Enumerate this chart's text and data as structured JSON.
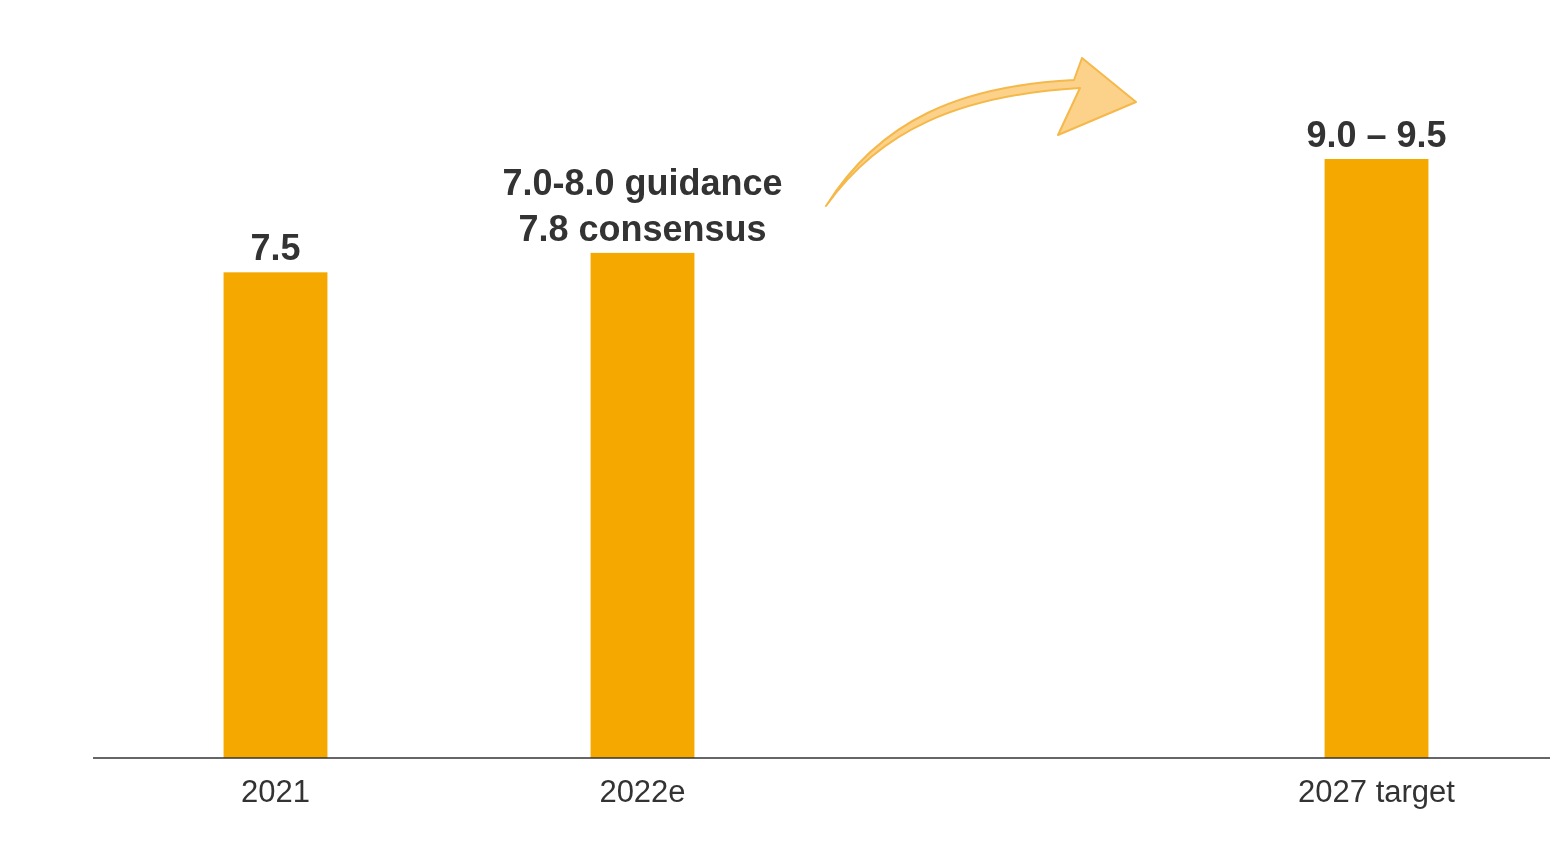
{
  "chart_data": {
    "type": "bar",
    "categories": [
      "2021",
      "2022e",
      null,
      "2027 target"
    ],
    "values": [
      7.5,
      7.8,
      null,
      9.25
    ],
    "value_labels": [
      "7.5",
      "7.0-8.0 guidance\n7.8 consensus",
      null,
      null
    ],
    "annotations": [
      {
        "text": "9.0 – 9.5",
        "x": "2027 target",
        "y": 9.25
      }
    ],
    "color": "#f5a800"
  }
}
